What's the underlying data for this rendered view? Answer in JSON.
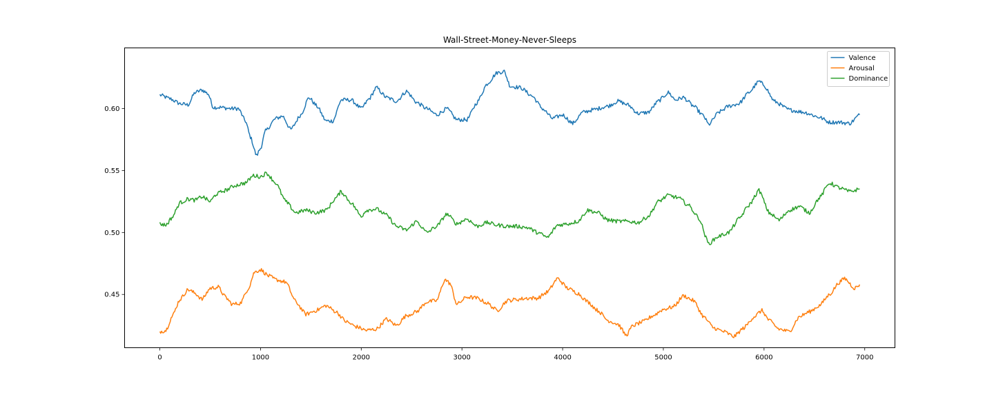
{
  "chart_data": {
    "type": "line",
    "title": "Wall-Street-Money-Never-Sleeps",
    "xlabel": "",
    "ylabel": "",
    "xlim": [
      -350,
      7300
    ],
    "ylim": [
      0.407,
      0.649
    ],
    "x_ticks": [
      0,
      1000,
      2000,
      3000,
      4000,
      5000,
      6000,
      7000
    ],
    "x_tick_labels": [
      "0",
      "1000",
      "2000",
      "3000",
      "4000",
      "5000",
      "6000",
      "7000"
    ],
    "y_ticks": [
      0.45,
      0.5,
      0.55,
      0.6
    ],
    "y_tick_labels": [
      "0.45",
      "0.50",
      "0.55",
      "0.60"
    ],
    "grid": false,
    "legend": "top-right",
    "series": [
      {
        "name": "Valence",
        "color": "#1f77b4",
        "points": [
          [
            0,
            0.611
          ],
          [
            100,
            0.608
          ],
          [
            200,
            0.604
          ],
          [
            280,
            0.603
          ],
          [
            350,
            0.613
          ],
          [
            420,
            0.615
          ],
          [
            480,
            0.612
          ],
          [
            530,
            0.601
          ],
          [
            600,
            0.601
          ],
          [
            700,
            0.6
          ],
          [
            780,
            0.6
          ],
          [
            850,
            0.59
          ],
          [
            900,
            0.577
          ],
          [
            960,
            0.562
          ],
          [
            1000,
            0.568
          ],
          [
            1050,
            0.582
          ],
          [
            1150,
            0.592
          ],
          [
            1220,
            0.594
          ],
          [
            1300,
            0.583
          ],
          [
            1400,
            0.595
          ],
          [
            1480,
            0.609
          ],
          [
            1560,
            0.602
          ],
          [
            1650,
            0.59
          ],
          [
            1720,
            0.59
          ],
          [
            1800,
            0.607
          ],
          [
            1900,
            0.607
          ],
          [
            2000,
            0.6
          ],
          [
            2080,
            0.608
          ],
          [
            2150,
            0.617
          ],
          [
            2250,
            0.609
          ],
          [
            2350,
            0.606
          ],
          [
            2450,
            0.614
          ],
          [
            2550,
            0.605
          ],
          [
            2650,
            0.6
          ],
          [
            2750,
            0.595
          ],
          [
            2850,
            0.6
          ],
          [
            2950,
            0.591
          ],
          [
            3050,
            0.591
          ],
          [
            3150,
            0.605
          ],
          [
            3250,
            0.62
          ],
          [
            3350,
            0.629
          ],
          [
            3420,
            0.63
          ],
          [
            3480,
            0.618
          ],
          [
            3580,
            0.617
          ],
          [
            3700,
            0.61
          ],
          [
            3800,
            0.6
          ],
          [
            3900,
            0.592
          ],
          [
            4000,
            0.595
          ],
          [
            4100,
            0.588
          ],
          [
            4200,
            0.597
          ],
          [
            4300,
            0.599
          ],
          [
            4450,
            0.602
          ],
          [
            4550,
            0.606
          ],
          [
            4650,
            0.603
          ],
          [
            4750,
            0.596
          ],
          [
            4850,
            0.597
          ],
          [
            4950,
            0.606
          ],
          [
            5050,
            0.613
          ],
          [
            5120,
            0.607
          ],
          [
            5200,
            0.609
          ],
          [
            5300,
            0.602
          ],
          [
            5400,
            0.594
          ],
          [
            5450,
            0.587
          ],
          [
            5550,
            0.597
          ],
          [
            5650,
            0.602
          ],
          [
            5750,
            0.604
          ],
          [
            5850,
            0.613
          ],
          [
            5950,
            0.622
          ],
          [
            6000,
            0.619
          ],
          [
            6100,
            0.606
          ],
          [
            6250,
            0.599
          ],
          [
            6400,
            0.597
          ],
          [
            6550,
            0.593
          ],
          [
            6650,
            0.589
          ],
          [
            6750,
            0.589
          ],
          [
            6850,
            0.588
          ],
          [
            6950,
            0.595
          ]
        ]
      },
      {
        "name": "Arousal",
        "color": "#ff7f0e",
        "points": [
          [
            0,
            0.42
          ],
          [
            60,
            0.421
          ],
          [
            120,
            0.432
          ],
          [
            200,
            0.446
          ],
          [
            280,
            0.454
          ],
          [
            350,
            0.451
          ],
          [
            420,
            0.446
          ],
          [
            500,
            0.455
          ],
          [
            580,
            0.456
          ],
          [
            650,
            0.448
          ],
          [
            720,
            0.442
          ],
          [
            800,
            0.443
          ],
          [
            880,
            0.455
          ],
          [
            940,
            0.468
          ],
          [
            1000,
            0.47
          ],
          [
            1080,
            0.465
          ],
          [
            1150,
            0.462
          ],
          [
            1250,
            0.46
          ],
          [
            1350,
            0.444
          ],
          [
            1450,
            0.434
          ],
          [
            1550,
            0.437
          ],
          [
            1650,
            0.441
          ],
          [
            1750,
            0.436
          ],
          [
            1850,
            0.428
          ],
          [
            1950,
            0.424
          ],
          [
            2050,
            0.421
          ],
          [
            2150,
            0.422
          ],
          [
            2250,
            0.43
          ],
          [
            2350,
            0.425
          ],
          [
            2450,
            0.433
          ],
          [
            2550,
            0.436
          ],
          [
            2650,
            0.444
          ],
          [
            2750,
            0.445
          ],
          [
            2830,
            0.462
          ],
          [
            2880,
            0.459
          ],
          [
            2950,
            0.442
          ],
          [
            3050,
            0.448
          ],
          [
            3150,
            0.447
          ],
          [
            3250,
            0.443
          ],
          [
            3350,
            0.437
          ],
          [
            3450,
            0.445
          ],
          [
            3550,
            0.446
          ],
          [
            3650,
            0.447
          ],
          [
            3750,
            0.447
          ],
          [
            3850,
            0.452
          ],
          [
            3950,
            0.463
          ],
          [
            4050,
            0.455
          ],
          [
            4150,
            0.451
          ],
          [
            4250,
            0.444
          ],
          [
            4350,
            0.437
          ],
          [
            4450,
            0.429
          ],
          [
            4550,
            0.426
          ],
          [
            4630,
            0.417
          ],
          [
            4700,
            0.425
          ],
          [
            4800,
            0.428
          ],
          [
            4900,
            0.433
          ],
          [
            5000,
            0.438
          ],
          [
            5100,
            0.44
          ],
          [
            5200,
            0.449
          ],
          [
            5300,
            0.445
          ],
          [
            5400,
            0.432
          ],
          [
            5500,
            0.423
          ],
          [
            5600,
            0.42
          ],
          [
            5700,
            0.416
          ],
          [
            5800,
            0.423
          ],
          [
            5900,
            0.432
          ],
          [
            5980,
            0.437
          ],
          [
            6050,
            0.429
          ],
          [
            6150,
            0.422
          ],
          [
            6250,
            0.42
          ],
          [
            6350,
            0.432
          ],
          [
            6450,
            0.436
          ],
          [
            6550,
            0.441
          ],
          [
            6650,
            0.45
          ],
          [
            6750,
            0.46
          ],
          [
            6800,
            0.463
          ],
          [
            6900,
            0.455
          ],
          [
            6950,
            0.458
          ]
        ]
      },
      {
        "name": "Dominance",
        "color": "#2ca02c",
        "points": [
          [
            0,
            0.507
          ],
          [
            60,
            0.506
          ],
          [
            120,
            0.512
          ],
          [
            200,
            0.524
          ],
          [
            280,
            0.527
          ],
          [
            350,
            0.526
          ],
          [
            420,
            0.529
          ],
          [
            500,
            0.525
          ],
          [
            560,
            0.531
          ],
          [
            650,
            0.534
          ],
          [
            750,
            0.538
          ],
          [
            850,
            0.54
          ],
          [
            930,
            0.546
          ],
          [
            1000,
            0.545
          ],
          [
            1060,
            0.548
          ],
          [
            1150,
            0.54
          ],
          [
            1250,
            0.525
          ],
          [
            1350,
            0.516
          ],
          [
            1450,
            0.518
          ],
          [
            1550,
            0.516
          ],
          [
            1650,
            0.518
          ],
          [
            1750,
            0.528
          ],
          [
            1800,
            0.533
          ],
          [
            1900,
            0.524
          ],
          [
            2000,
            0.513
          ],
          [
            2050,
            0.518
          ],
          [
            2150,
            0.519
          ],
          [
            2250,
            0.514
          ],
          [
            2350,
            0.505
          ],
          [
            2450,
            0.502
          ],
          [
            2550,
            0.509
          ],
          [
            2650,
            0.5
          ],
          [
            2750,
            0.505
          ],
          [
            2850,
            0.515
          ],
          [
            2950,
            0.507
          ],
          [
            3050,
            0.511
          ],
          [
            3150,
            0.505
          ],
          [
            3250,
            0.508
          ],
          [
            3350,
            0.506
          ],
          [
            3450,
            0.505
          ],
          [
            3550,
            0.505
          ],
          [
            3650,
            0.504
          ],
          [
            3750,
            0.5
          ],
          [
            3850,
            0.496
          ],
          [
            3950,
            0.506
          ],
          [
            4050,
            0.507
          ],
          [
            4150,
            0.509
          ],
          [
            4250,
            0.518
          ],
          [
            4350,
            0.516
          ],
          [
            4450,
            0.51
          ],
          [
            4550,
            0.509
          ],
          [
            4650,
            0.509
          ],
          [
            4750,
            0.508
          ],
          [
            4850,
            0.513
          ],
          [
            4950,
            0.525
          ],
          [
            5050,
            0.53
          ],
          [
            5150,
            0.528
          ],
          [
            5250,
            0.522
          ],
          [
            5350,
            0.512
          ],
          [
            5450,
            0.491
          ],
          [
            5550,
            0.497
          ],
          [
            5650,
            0.5
          ],
          [
            5750,
            0.511
          ],
          [
            5850,
            0.522
          ],
          [
            5950,
            0.534
          ],
          [
            6050,
            0.516
          ],
          [
            6150,
            0.51
          ],
          [
            6250,
            0.518
          ],
          [
            6350,
            0.521
          ],
          [
            6450,
            0.516
          ],
          [
            6550,
            0.528
          ],
          [
            6650,
            0.54
          ],
          [
            6750,
            0.536
          ],
          [
            6850,
            0.533
          ],
          [
            6950,
            0.535
          ]
        ]
      }
    ]
  }
}
